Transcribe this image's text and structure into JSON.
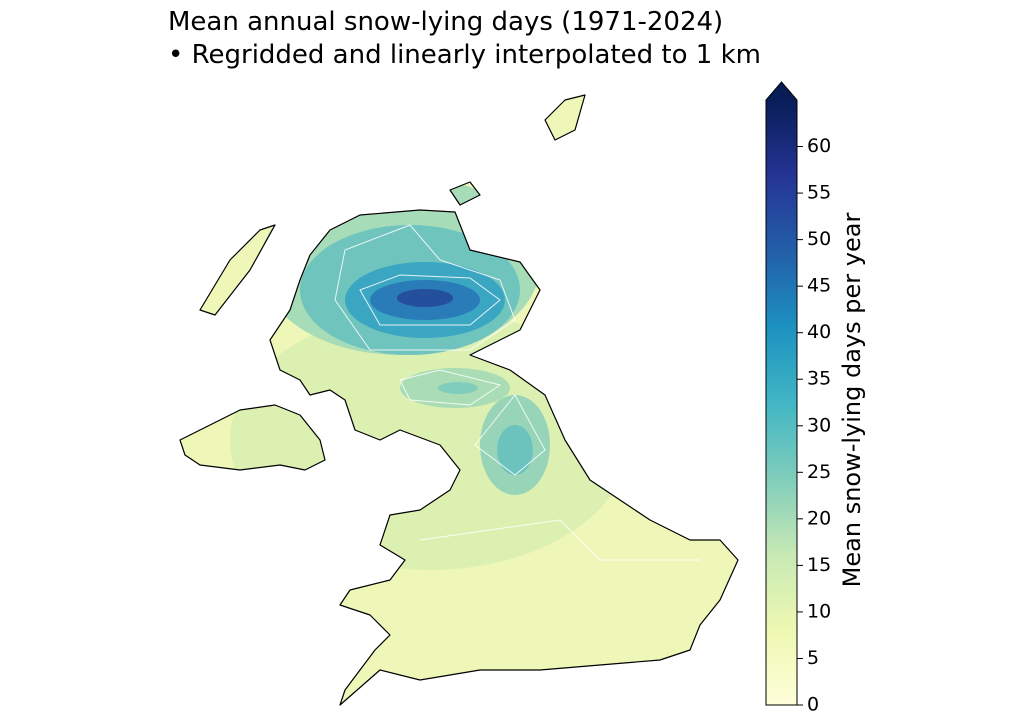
{
  "chart_data": {
    "type": "map",
    "title": "Mean annual snow-lying days (1971-2024)",
    "subtitle": "• Regridded and linearly interpolated to 1 km",
    "colorbar": {
      "label": "Mean snow-lying days per year",
      "lim": [
        0,
        65
      ],
      "ticks": [
        0,
        5,
        10,
        15,
        20,
        25,
        30,
        35,
        40,
        45,
        50,
        55,
        60
      ],
      "colormap": "YlGnBu",
      "extend": "max"
    }
  }
}
